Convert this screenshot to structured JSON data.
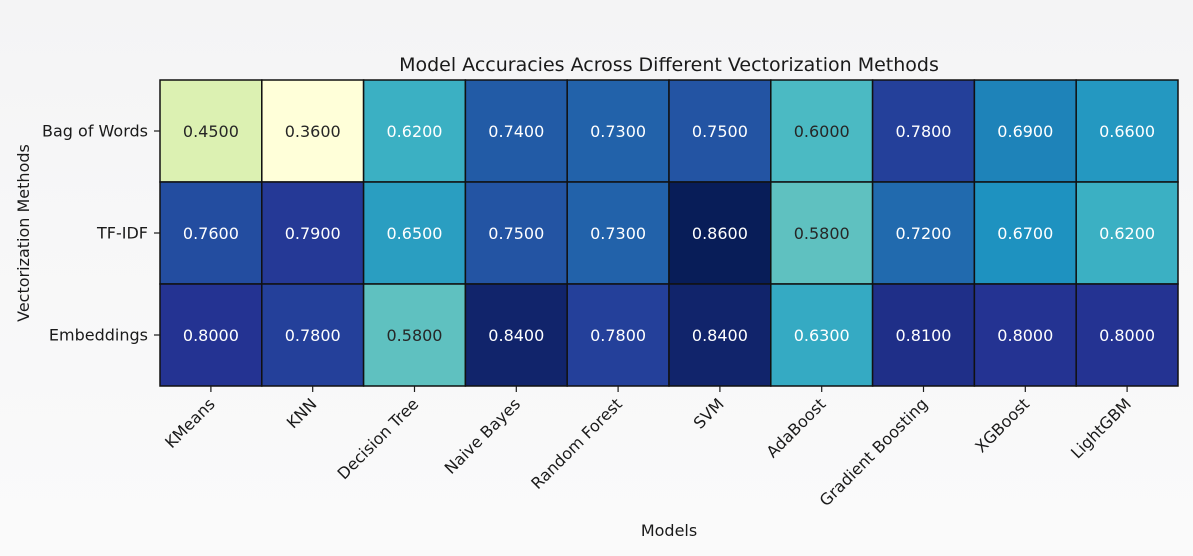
{
  "chart_data": {
    "type": "heatmap",
    "title": "Model Accuracies Across Different Vectorization Methods",
    "xlabel": "Models",
    "ylabel": "Vectorization Methods",
    "x_categories": [
      "KMeans",
      "KNN",
      "Decision Tree",
      "Naive Bayes",
      "Random Forest",
      "SVM",
      "AdaBoost",
      "Gradient Boosting",
      "XGBoost",
      "LightGBM"
    ],
    "y_categories": [
      "Bag of Words",
      "TF-IDF",
      "Embeddings"
    ],
    "values": [
      [
        0.45,
        0.36,
        0.62,
        0.74,
        0.73,
        0.75,
        0.6,
        0.78,
        0.69,
        0.66
      ],
      [
        0.76,
        0.79,
        0.65,
        0.75,
        0.73,
        0.86,
        0.58,
        0.72,
        0.67,
        0.62
      ],
      [
        0.8,
        0.78,
        0.58,
        0.84,
        0.78,
        0.84,
        0.63,
        0.81,
        0.8,
        0.8
      ]
    ],
    "labels": [
      [
        "0.4500",
        "0.3600",
        "0.6200",
        "0.7400",
        "0.7300",
        "0.7500",
        "0.6000",
        "0.7800",
        "0.6900",
        "0.6600"
      ],
      [
        "0.7600",
        "0.7900",
        "0.6500",
        "0.7500",
        "0.7300",
        "0.8600",
        "0.5800",
        "0.7200",
        "0.6700",
        "0.6200"
      ],
      [
        "0.8000",
        "0.7800",
        "0.5800",
        "0.8400",
        "0.7800",
        "0.8400",
        "0.6300",
        "0.8100",
        "0.8000",
        "0.8000"
      ]
    ],
    "colormap": "YlGnBu",
    "grid": false
  }
}
